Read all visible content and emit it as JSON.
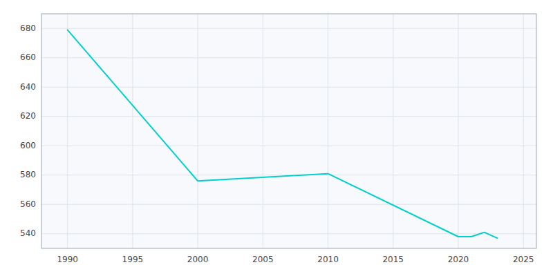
{
  "chart_data": {
    "type": "line",
    "x": [
      1990,
      2000,
      2010,
      2020,
      2021,
      2022,
      2023
    ],
    "values": [
      679,
      576,
      581,
      538,
      538,
      541,
      537
    ],
    "color": "#00CFCF",
    "xlim": [
      1988,
      2026
    ],
    "ylim": [
      530,
      690
    ],
    "xticks": [
      1990,
      1995,
      2000,
      2005,
      2010,
      2015,
      2020,
      2025
    ],
    "yticks": [
      540,
      560,
      580,
      600,
      620,
      640,
      660,
      680
    ],
    "grid": true
  }
}
